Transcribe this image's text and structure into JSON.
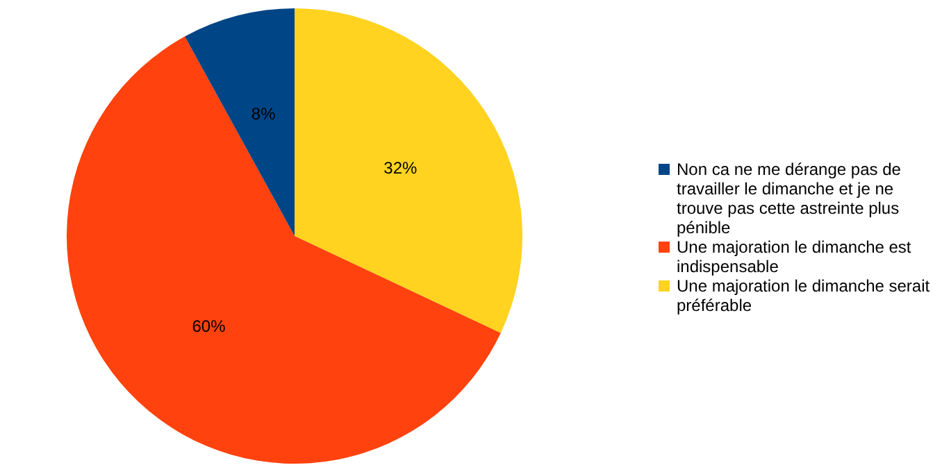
{
  "chart_data": {
    "type": "pie",
    "categories": [
      "Non ca ne me dérange pas de travailler le dimanche et je ne trouve pas cette astreinte plus pénible",
      "Une majoration le dimanche est indispensable",
      "Une majoration le dimanche serait préférable"
    ],
    "values": [
      8,
      60,
      32
    ],
    "colors": [
      "#004586",
      "#ff420e",
      "#ffd320"
    ],
    "value_labels": [
      "8%",
      "60%",
      "32%"
    ],
    "legend": "right"
  }
}
